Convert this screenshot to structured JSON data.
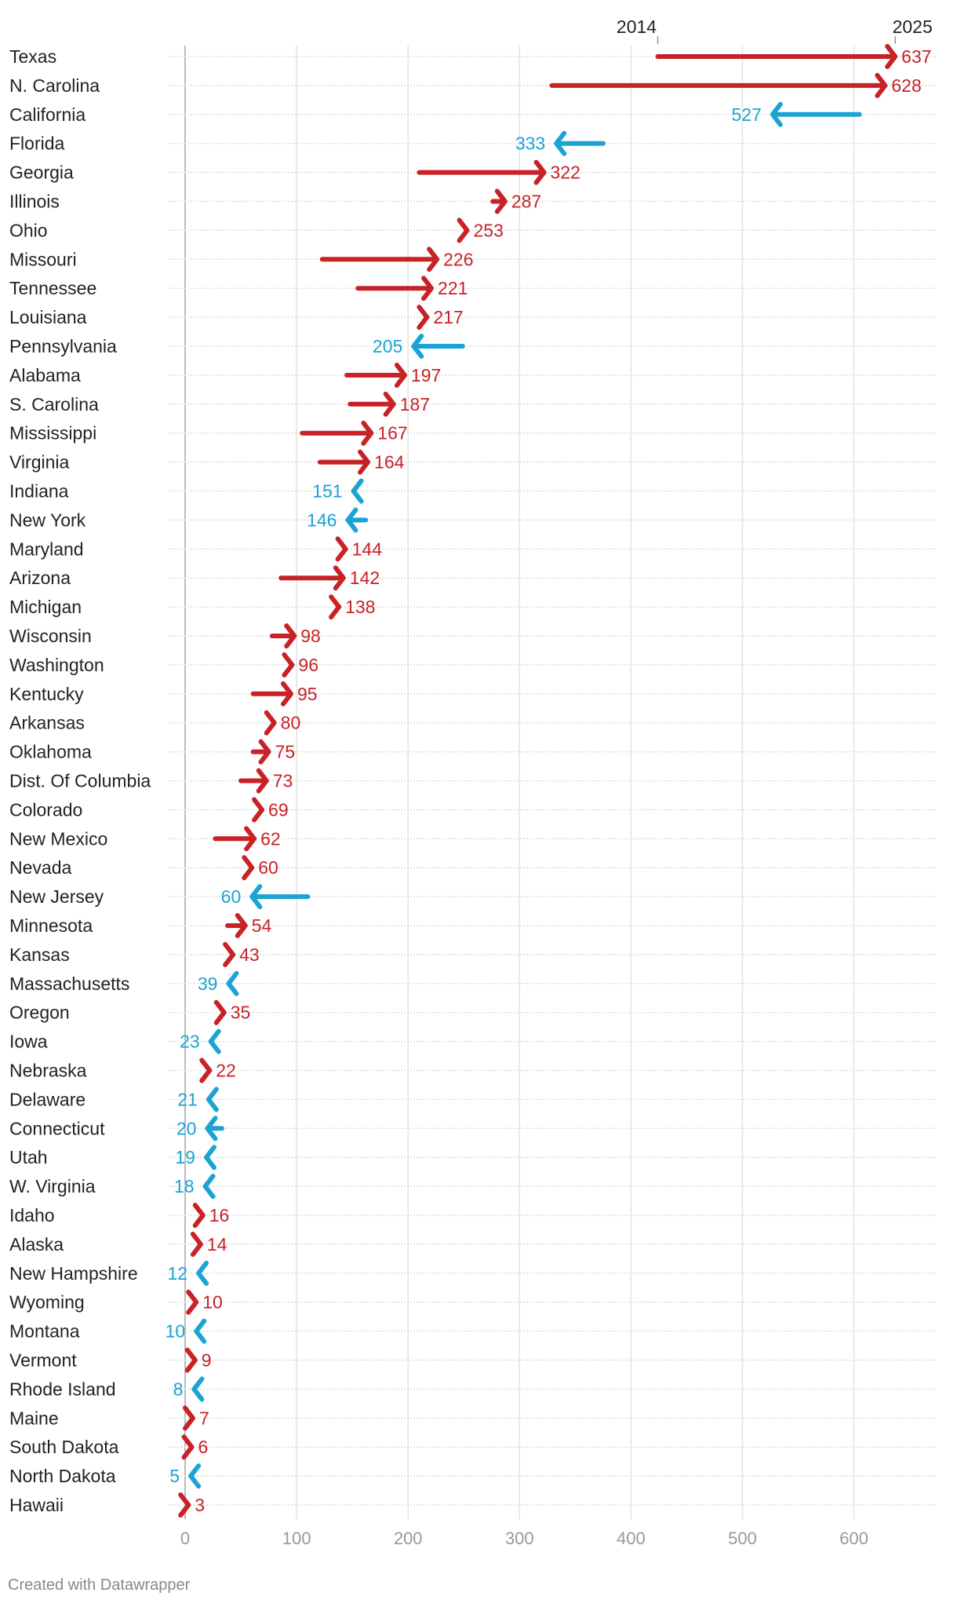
{
  "chart_data": {
    "type": "arrow-range",
    "title": "",
    "start_label": "2014",
    "end_label": "2025",
    "xlim": [
      0,
      680
    ],
    "xticks": [
      0,
      100,
      200,
      300,
      400,
      500,
      600
    ],
    "colors": {
      "increase": "#c82126",
      "decrease": "#1ba3d3"
    },
    "rows": [
      {
        "name": "Texas",
        "start": 424,
        "end": 637
      },
      {
        "name": "N. Carolina",
        "start": 329,
        "end": 628
      },
      {
        "name": "California",
        "start": 605,
        "end": 527
      },
      {
        "name": "Florida",
        "start": 375,
        "end": 333
      },
      {
        "name": "Georgia",
        "start": 210,
        "end": 322
      },
      {
        "name": "Illinois",
        "start": 276,
        "end": 287
      },
      {
        "name": "Ohio",
        "start": 246,
        "end": 253
      },
      {
        "name": "Missouri",
        "start": 123,
        "end": 226
      },
      {
        "name": "Tennessee",
        "start": 155,
        "end": 221
      },
      {
        "name": "Louisiana",
        "start": 211,
        "end": 217
      },
      {
        "name": "Pennsylvania",
        "start": 249,
        "end": 205
      },
      {
        "name": "Alabama",
        "start": 145,
        "end": 197
      },
      {
        "name": "S. Carolina",
        "start": 148,
        "end": 187
      },
      {
        "name": "Mississippi",
        "start": 105,
        "end": 167
      },
      {
        "name": "Virginia",
        "start": 121,
        "end": 164
      },
      {
        "name": "Indiana",
        "start": 156,
        "end": 151
      },
      {
        "name": "New York",
        "start": 162,
        "end": 146
      },
      {
        "name": "Maryland",
        "start": 137,
        "end": 144
      },
      {
        "name": "Arizona",
        "start": 86,
        "end": 142
      },
      {
        "name": "Michigan",
        "start": 132,
        "end": 138
      },
      {
        "name": "Wisconsin",
        "start": 78,
        "end": 98
      },
      {
        "name": "Washington",
        "start": 90,
        "end": 96
      },
      {
        "name": "Kentucky",
        "start": 61,
        "end": 95
      },
      {
        "name": "Arkansas",
        "start": 74,
        "end": 80
      },
      {
        "name": "Oklahoma",
        "start": 61,
        "end": 75
      },
      {
        "name": "Dist. Of Columbia",
        "start": 50,
        "end": 73
      },
      {
        "name": "Colorado",
        "start": 63,
        "end": 69
      },
      {
        "name": "New Mexico",
        "start": 27,
        "end": 62
      },
      {
        "name": "Nevada",
        "start": 55,
        "end": 60
      },
      {
        "name": "New Jersey",
        "start": 110,
        "end": 60
      },
      {
        "name": "Minnesota",
        "start": 38,
        "end": 54
      },
      {
        "name": "Kansas",
        "start": 38,
        "end": 43
      },
      {
        "name": "Massachusetts",
        "start": 45,
        "end": 39
      },
      {
        "name": "Oregon",
        "start": 30,
        "end": 35
      },
      {
        "name": "Iowa",
        "start": 28,
        "end": 23
      },
      {
        "name": "Nebraska",
        "start": 16,
        "end": 22
      },
      {
        "name": "Delaware",
        "start": 26,
        "end": 21
      },
      {
        "name": "Connecticut",
        "start": 33,
        "end": 20
      },
      {
        "name": "Utah",
        "start": 24,
        "end": 19
      },
      {
        "name": "W. Virginia",
        "start": 23,
        "end": 18
      },
      {
        "name": "Idaho",
        "start": 11,
        "end": 16
      },
      {
        "name": "Alaska",
        "start": 9,
        "end": 14
      },
      {
        "name": "New Hampshire",
        "start": 17,
        "end": 12
      },
      {
        "name": "Wyoming",
        "start": 5,
        "end": 10
      },
      {
        "name": "Montana",
        "start": 15,
        "end": 10
      },
      {
        "name": "Vermont",
        "start": 4,
        "end": 9
      },
      {
        "name": "Rhode Island",
        "start": 13,
        "end": 8
      },
      {
        "name": "Maine",
        "start": 2,
        "end": 7
      },
      {
        "name": "South Dakota",
        "start": 1,
        "end": 6
      },
      {
        "name": "North Dakota",
        "start": 10,
        "end": 5
      },
      {
        "name": "Hawaii",
        "start": 0,
        "end": 3
      }
    ]
  },
  "footer": "Created with Datawrapper"
}
